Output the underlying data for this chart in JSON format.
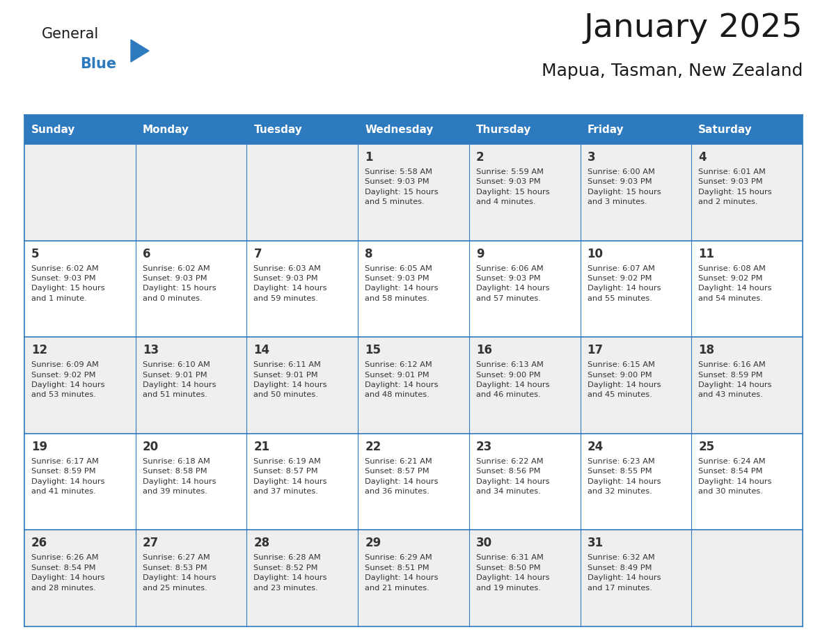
{
  "title": "January 2025",
  "subtitle": "Mapua, Tasman, New Zealand",
  "header_bg": "#2E7ABF",
  "header_text_color": "#FFFFFF",
  "day_names": [
    "Sunday",
    "Monday",
    "Tuesday",
    "Wednesday",
    "Thursday",
    "Friday",
    "Saturday"
  ],
  "background_color": "#FFFFFF",
  "cell_bg_odd": "#EFEFEF",
  "cell_bg_even": "#FFFFFF",
  "grid_color": "#2E7ABF",
  "text_color": "#333333",
  "logo_general_color": "#1a1a1a",
  "logo_blue_color": "#2E7ABF",
  "logo_triangle_color": "#2E7ABF",
  "title_color": "#1a1a1a",
  "subtitle_color": "#1a1a1a",
  "weeks": [
    [
      {
        "day": "",
        "info": ""
      },
      {
        "day": "",
        "info": ""
      },
      {
        "day": "",
        "info": ""
      },
      {
        "day": "1",
        "info": "Sunrise: 5:58 AM\nSunset: 9:03 PM\nDaylight: 15 hours\nand 5 minutes."
      },
      {
        "day": "2",
        "info": "Sunrise: 5:59 AM\nSunset: 9:03 PM\nDaylight: 15 hours\nand 4 minutes."
      },
      {
        "day": "3",
        "info": "Sunrise: 6:00 AM\nSunset: 9:03 PM\nDaylight: 15 hours\nand 3 minutes."
      },
      {
        "day": "4",
        "info": "Sunrise: 6:01 AM\nSunset: 9:03 PM\nDaylight: 15 hours\nand 2 minutes."
      }
    ],
    [
      {
        "day": "5",
        "info": "Sunrise: 6:02 AM\nSunset: 9:03 PM\nDaylight: 15 hours\nand 1 minute."
      },
      {
        "day": "6",
        "info": "Sunrise: 6:02 AM\nSunset: 9:03 PM\nDaylight: 15 hours\nand 0 minutes."
      },
      {
        "day": "7",
        "info": "Sunrise: 6:03 AM\nSunset: 9:03 PM\nDaylight: 14 hours\nand 59 minutes."
      },
      {
        "day": "8",
        "info": "Sunrise: 6:05 AM\nSunset: 9:03 PM\nDaylight: 14 hours\nand 58 minutes."
      },
      {
        "day": "9",
        "info": "Sunrise: 6:06 AM\nSunset: 9:03 PM\nDaylight: 14 hours\nand 57 minutes."
      },
      {
        "day": "10",
        "info": "Sunrise: 6:07 AM\nSunset: 9:02 PM\nDaylight: 14 hours\nand 55 minutes."
      },
      {
        "day": "11",
        "info": "Sunrise: 6:08 AM\nSunset: 9:02 PM\nDaylight: 14 hours\nand 54 minutes."
      }
    ],
    [
      {
        "day": "12",
        "info": "Sunrise: 6:09 AM\nSunset: 9:02 PM\nDaylight: 14 hours\nand 53 minutes."
      },
      {
        "day": "13",
        "info": "Sunrise: 6:10 AM\nSunset: 9:01 PM\nDaylight: 14 hours\nand 51 minutes."
      },
      {
        "day": "14",
        "info": "Sunrise: 6:11 AM\nSunset: 9:01 PM\nDaylight: 14 hours\nand 50 minutes."
      },
      {
        "day": "15",
        "info": "Sunrise: 6:12 AM\nSunset: 9:01 PM\nDaylight: 14 hours\nand 48 minutes."
      },
      {
        "day": "16",
        "info": "Sunrise: 6:13 AM\nSunset: 9:00 PM\nDaylight: 14 hours\nand 46 minutes."
      },
      {
        "day": "17",
        "info": "Sunrise: 6:15 AM\nSunset: 9:00 PM\nDaylight: 14 hours\nand 45 minutes."
      },
      {
        "day": "18",
        "info": "Sunrise: 6:16 AM\nSunset: 8:59 PM\nDaylight: 14 hours\nand 43 minutes."
      }
    ],
    [
      {
        "day": "19",
        "info": "Sunrise: 6:17 AM\nSunset: 8:59 PM\nDaylight: 14 hours\nand 41 minutes."
      },
      {
        "day": "20",
        "info": "Sunrise: 6:18 AM\nSunset: 8:58 PM\nDaylight: 14 hours\nand 39 minutes."
      },
      {
        "day": "21",
        "info": "Sunrise: 6:19 AM\nSunset: 8:57 PM\nDaylight: 14 hours\nand 37 minutes."
      },
      {
        "day": "22",
        "info": "Sunrise: 6:21 AM\nSunset: 8:57 PM\nDaylight: 14 hours\nand 36 minutes."
      },
      {
        "day": "23",
        "info": "Sunrise: 6:22 AM\nSunset: 8:56 PM\nDaylight: 14 hours\nand 34 minutes."
      },
      {
        "day": "24",
        "info": "Sunrise: 6:23 AM\nSunset: 8:55 PM\nDaylight: 14 hours\nand 32 minutes."
      },
      {
        "day": "25",
        "info": "Sunrise: 6:24 AM\nSunset: 8:54 PM\nDaylight: 14 hours\nand 30 minutes."
      }
    ],
    [
      {
        "day": "26",
        "info": "Sunrise: 6:26 AM\nSunset: 8:54 PM\nDaylight: 14 hours\nand 28 minutes."
      },
      {
        "day": "27",
        "info": "Sunrise: 6:27 AM\nSunset: 8:53 PM\nDaylight: 14 hours\nand 25 minutes."
      },
      {
        "day": "28",
        "info": "Sunrise: 6:28 AM\nSunset: 8:52 PM\nDaylight: 14 hours\nand 23 minutes."
      },
      {
        "day": "29",
        "info": "Sunrise: 6:29 AM\nSunset: 8:51 PM\nDaylight: 14 hours\nand 21 minutes."
      },
      {
        "day": "30",
        "info": "Sunrise: 6:31 AM\nSunset: 8:50 PM\nDaylight: 14 hours\nand 19 minutes."
      },
      {
        "day": "31",
        "info": "Sunrise: 6:32 AM\nSunset: 8:49 PM\nDaylight: 14 hours\nand 17 minutes."
      },
      {
        "day": "",
        "info": ""
      }
    ]
  ]
}
